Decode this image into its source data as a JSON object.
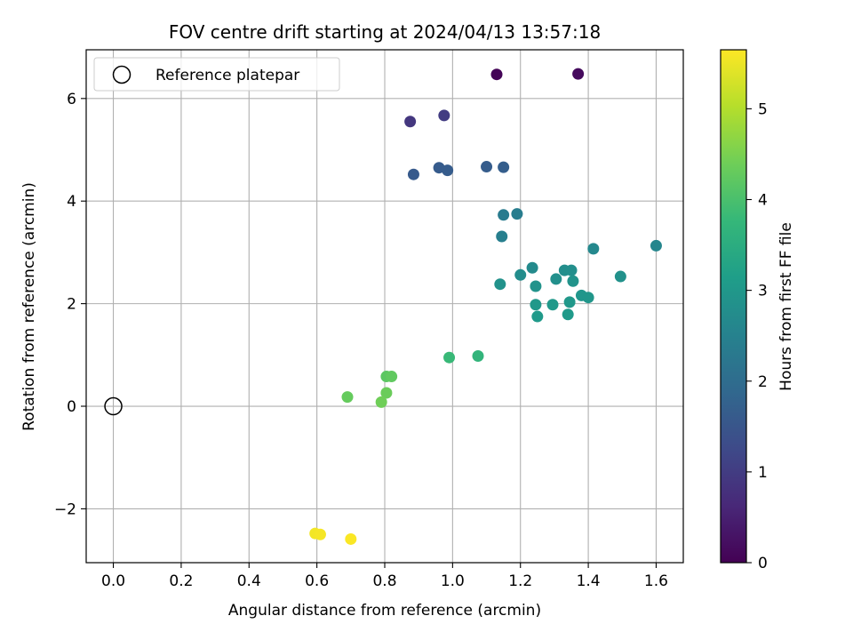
{
  "chart_data": {
    "type": "scatter",
    "title": "FOV centre drift starting at 2024/04/13 13:57:18",
    "xlabel": "Angular distance from reference (arcmin)",
    "ylabel": "Rotation from reference (arcmin)",
    "xlim": [
      -0.08,
      1.68
    ],
    "ylim": [
      -3.05,
      6.95
    ],
    "xticks": [
      0.0,
      0.2,
      0.4,
      0.6,
      0.8,
      1.0,
      1.2,
      1.4,
      1.6
    ],
    "xtick_labels": [
      "0.0",
      "0.2",
      "0.4",
      "0.6",
      "0.8",
      "1.0",
      "1.2",
      "1.4",
      "1.6"
    ],
    "yticks": [
      -2,
      0,
      2,
      4,
      6
    ],
    "ytick_labels": [
      "−2",
      "0",
      "2",
      "4",
      "6"
    ],
    "grid": true,
    "legend": {
      "position": "top-left",
      "entries": [
        "Reference platepar"
      ]
    },
    "reference_point": {
      "x": 0.0,
      "y": 0.0,
      "label": "Reference platepar"
    },
    "colorbar": {
      "label": "Hours from first FF file",
      "colormap": "viridis",
      "range": [
        0,
        5.65
      ],
      "ticks": [
        0,
        1,
        2,
        3,
        4,
        5
      ],
      "tick_labels": [
        "0",
        "1",
        "2",
        "3",
        "4",
        "5"
      ]
    },
    "points": [
      {
        "x": 1.13,
        "y": 6.47,
        "hours": 0.05
      },
      {
        "x": 1.37,
        "y": 6.48,
        "hours": 0.15
      },
      {
        "x": 0.875,
        "y": 5.55,
        "hours": 0.9
      },
      {
        "x": 0.975,
        "y": 5.67,
        "hours": 1.0
      },
      {
        "x": 0.885,
        "y": 4.52,
        "hours": 1.6
      },
      {
        "x": 0.96,
        "y": 4.65,
        "hours": 1.62
      },
      {
        "x": 0.985,
        "y": 4.6,
        "hours": 1.64
      },
      {
        "x": 1.1,
        "y": 4.67,
        "hours": 1.66
      },
      {
        "x": 1.15,
        "y": 4.66,
        "hours": 1.68
      },
      {
        "x": 1.15,
        "y": 3.73,
        "hours": 2.35
      },
      {
        "x": 1.19,
        "y": 3.75,
        "hours": 2.4
      },
      {
        "x": 1.145,
        "y": 3.31,
        "hours": 2.45
      },
      {
        "x": 1.6,
        "y": 3.13,
        "hours": 2.6
      },
      {
        "x": 1.415,
        "y": 3.07,
        "hours": 2.65
      },
      {
        "x": 1.235,
        "y": 2.7,
        "hours": 2.7
      },
      {
        "x": 1.2,
        "y": 2.56,
        "hours": 2.75
      },
      {
        "x": 1.33,
        "y": 2.65,
        "hours": 2.78
      },
      {
        "x": 1.35,
        "y": 2.65,
        "hours": 2.8
      },
      {
        "x": 1.305,
        "y": 2.48,
        "hours": 2.82
      },
      {
        "x": 1.495,
        "y": 2.53,
        "hours": 2.85
      },
      {
        "x": 1.14,
        "y": 2.38,
        "hours": 2.87
      },
      {
        "x": 1.245,
        "y": 2.34,
        "hours": 2.9
      },
      {
        "x": 1.355,
        "y": 2.44,
        "hours": 2.9
      },
      {
        "x": 1.38,
        "y": 2.16,
        "hours": 2.95
      },
      {
        "x": 1.4,
        "y": 2.12,
        "hours": 2.97
      },
      {
        "x": 1.345,
        "y": 2.03,
        "hours": 3.0
      },
      {
        "x": 1.245,
        "y": 1.98,
        "hours": 3.0
      },
      {
        "x": 1.295,
        "y": 1.98,
        "hours": 3.02
      },
      {
        "x": 1.25,
        "y": 1.75,
        "hours": 3.05
      },
      {
        "x": 1.34,
        "y": 1.79,
        "hours": 3.05
      },
      {
        "x": 1.075,
        "y": 0.98,
        "hours": 3.7
      },
      {
        "x": 0.99,
        "y": 0.95,
        "hours": 3.8
      },
      {
        "x": 0.805,
        "y": 0.58,
        "hours": 4.2
      },
      {
        "x": 0.82,
        "y": 0.58,
        "hours": 4.25
      },
      {
        "x": 0.69,
        "y": 0.18,
        "hours": 4.3
      },
      {
        "x": 0.805,
        "y": 0.26,
        "hours": 4.35
      },
      {
        "x": 0.79,
        "y": 0.08,
        "hours": 4.4
      },
      {
        "x": 0.595,
        "y": -2.48,
        "hours": 5.55
      },
      {
        "x": 0.61,
        "y": -2.5,
        "hours": 5.58
      },
      {
        "x": 0.7,
        "y": -2.59,
        "hours": 5.62
      }
    ]
  }
}
